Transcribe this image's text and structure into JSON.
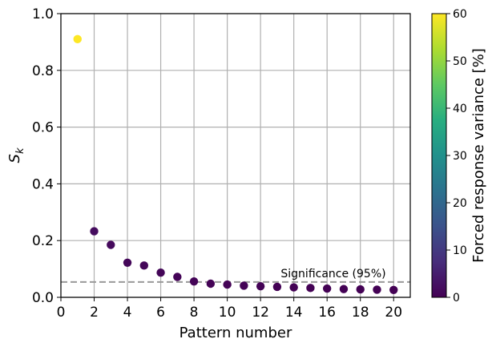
{
  "chart_data": {
    "type": "scatter",
    "xlabel": "Pattern number",
    "ylabel": "S",
    "ylabel_subscript": "k",
    "xlim": [
      0,
      21
    ],
    "ylim": [
      0,
      1.0
    ],
    "x_ticks": [
      "0",
      "2",
      "4",
      "6",
      "8",
      "10",
      "12",
      "14",
      "16",
      "18",
      "20"
    ],
    "y_ticks": [
      "0.0",
      "0.2",
      "0.4",
      "0.6",
      "0.8",
      "1.0"
    ],
    "grid": true,
    "points": [
      {
        "x": 1,
        "y": 0.91,
        "c": 60
      },
      {
        "x": 2,
        "y": 0.233,
        "c": 2
      },
      {
        "x": 3,
        "y": 0.185,
        "c": 1.5
      },
      {
        "x": 4,
        "y": 0.122,
        "c": 1
      },
      {
        "x": 5,
        "y": 0.112,
        "c": 1
      },
      {
        "x": 6,
        "y": 0.087,
        "c": 0.8
      },
      {
        "x": 7,
        "y": 0.072,
        "c": 0.5
      },
      {
        "x": 8,
        "y": 0.056,
        "c": 0.5
      },
      {
        "x": 9,
        "y": 0.048,
        "c": 0.3
      },
      {
        "x": 10,
        "y": 0.045,
        "c": 0.3
      },
      {
        "x": 11,
        "y": 0.041,
        "c": 0.3
      },
      {
        "x": 12,
        "y": 0.039,
        "c": 0.3
      },
      {
        "x": 13,
        "y": 0.037,
        "c": 0.2
      },
      {
        "x": 14,
        "y": 0.035,
        "c": 0.2
      },
      {
        "x": 15,
        "y": 0.033,
        "c": 0.2
      },
      {
        "x": 16,
        "y": 0.031,
        "c": 0.2
      },
      {
        "x": 17,
        "y": 0.029,
        "c": 0.2
      },
      {
        "x": 18,
        "y": 0.028,
        "c": 0.1
      },
      {
        "x": 19,
        "y": 0.027,
        "c": 0.1
      },
      {
        "x": 20,
        "y": 0.026,
        "c": 0.1
      }
    ],
    "significance": {
      "y": 0.054,
      "label": "Significance (95%)",
      "color": "#999999"
    },
    "colorbar": {
      "label": "Forced response variance [%]",
      "range": [
        0,
        60
      ],
      "ticks": [
        "0",
        "10",
        "20",
        "30",
        "40",
        "50",
        "60"
      ],
      "colormap": "viridis"
    }
  }
}
